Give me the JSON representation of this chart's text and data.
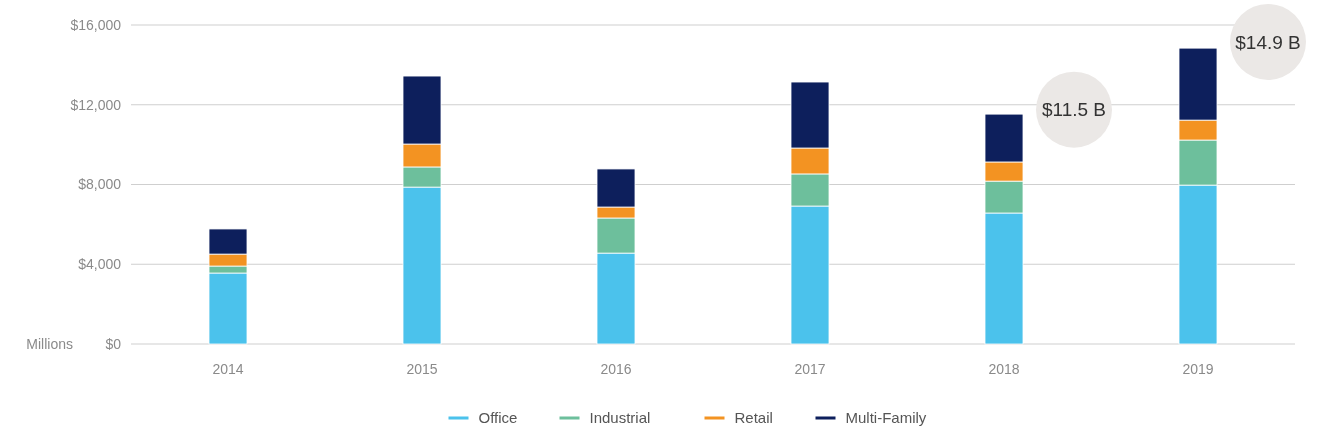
{
  "chart_data": {
    "type": "bar",
    "stacked": true,
    "categories": [
      "2014",
      "2015",
      "2016",
      "2017",
      "2018",
      "2019"
    ],
    "series": [
      {
        "name": "Office",
        "color": "#4bc2ec",
        "values": [
          3560,
          7870,
          4560,
          6920,
          6570,
          7970
        ]
      },
      {
        "name": "Industrial",
        "color": "#6dbf9c",
        "values": [
          350,
          1010,
          1760,
          1610,
          1600,
          2260
        ]
      },
      {
        "name": "Retail",
        "color": "#f39322",
        "values": [
          600,
          1150,
          550,
          1300,
          960,
          1000
        ]
      },
      {
        "name": "Multi-Family",
        "color": "#0d1f5c",
        "values": [
          1260,
          3410,
          1910,
          3310,
          2400,
          3610
        ]
      }
    ],
    "ylabel": "Millions",
    "ylim": [
      0,
      16000
    ],
    "yticks": [
      {
        "value": 0,
        "label": "$0"
      },
      {
        "value": 4000,
        "label": "$4,000"
      },
      {
        "value": 8000,
        "label": "$8,000"
      },
      {
        "value": 12000,
        "label": "$12,000"
      },
      {
        "value": 16000,
        "label": "$16,000"
      }
    ],
    "grid": "y",
    "legend": "bottom",
    "annotations": [
      {
        "text": "$11.5 B",
        "x": "2018",
        "y": 11500
      },
      {
        "text": "$14.9 B",
        "x": "2019",
        "y": 14900
      }
    ]
  }
}
